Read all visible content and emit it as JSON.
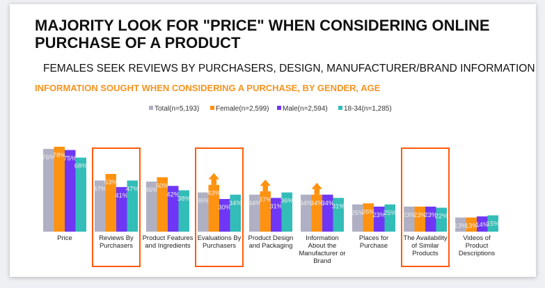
{
  "title": "MAJORITY LOOK FOR \"PRICE\" WHEN CONSIDERING ONLINE PURCHASE OF A PRODUCT",
  "subtitle": "FEMALES SEEK REVIEWS BY PURCHASERS, DESIGN, MANUFACTURER/BRAND INFORMATION",
  "chart_data": {
    "type": "bar",
    "title": "INFORMATION SOUGHT WHEN CONSIDERING A PURCHASE, BY GENDER, AGE",
    "ylim": [
      0,
      80
    ],
    "legend_position": "top",
    "categories": [
      [
        "Price"
      ],
      [
        "Reviews By",
        "Purchasers"
      ],
      [
        "Product Features",
        "and Ingredients"
      ],
      [
        "Evaluations By",
        "Purchasers"
      ],
      [
        "Product Design",
        "and Packaging"
      ],
      [
        "Information",
        "About the",
        "Manufacturer or",
        "Brand"
      ],
      [
        "Places for",
        "Purchase"
      ],
      [
        "The Availability",
        "of Similar",
        "Products"
      ],
      [
        "Videos of",
        "Product",
        "Descriptions"
      ]
    ],
    "series": [
      {
        "name": "Total(n=5,193)",
        "color": "#b0b0c4",
        "values": [
          76,
          47,
          46,
          36,
          34,
          34,
          25,
          23,
          13
        ]
      },
      {
        "name": "Female(n=2,599)",
        "color": "#ff9210",
        "values": [
          78,
          53,
          50,
          43,
          37,
          34,
          26,
          23,
          13
        ]
      },
      {
        "name": "Male(n=2,594)",
        "color": "#6f37f5",
        "values": [
          75,
          41,
          42,
          30,
          31,
          34,
          23,
          23,
          14
        ]
      },
      {
        "name": "18-34(n=1,285)",
        "color": "#33bdb8",
        "values": [
          68,
          47,
          38,
          34,
          36,
          31,
          25,
          22,
          15
        ]
      }
    ],
    "highlighted_categories": [
      1,
      3,
      7
    ],
    "arrow_categories": [
      3,
      4,
      5
    ],
    "highlight_color": "#ff5a0a"
  }
}
